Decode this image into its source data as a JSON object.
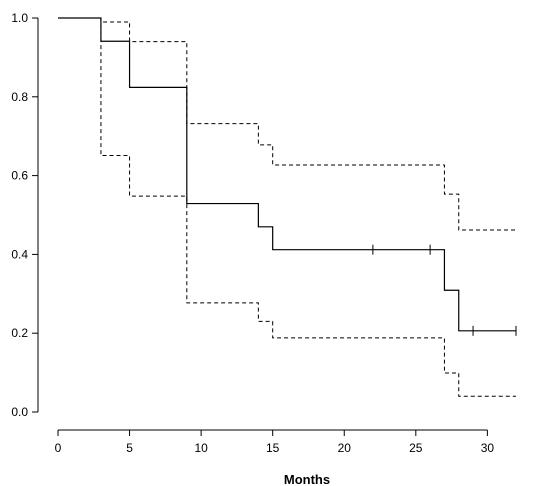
{
  "chart_data": {
    "type": "line",
    "title": "",
    "xlabel": "Months",
    "ylabel": "",
    "xlim": [
      0,
      32
    ],
    "ylim": [
      0,
      1
    ],
    "x_ticks": [
      0,
      5,
      10,
      15,
      20,
      25,
      30
    ],
    "y_ticks": [
      0.0,
      0.2,
      0.4,
      0.6,
      0.8,
      1.0
    ],
    "x_tick_labels": [
      "0",
      "5",
      "10",
      "15",
      "20",
      "25",
      "30"
    ],
    "y_tick_labels": [
      "0.0",
      "0.2",
      "0.4",
      "0.6",
      "0.8",
      "1.0"
    ],
    "grid": false,
    "series": [
      {
        "style": "solid",
        "x": [
          0,
          3,
          5,
          9,
          14,
          15,
          27,
          28,
          32
        ],
        "y": [
          1.0,
          0.941,
          0.824,
          0.529,
          0.47,
          0.412,
          0.309,
          0.206,
          0.206
        ],
        "censored": [
          [
            22,
            0.412
          ],
          [
            26,
            0.412
          ],
          [
            29,
            0.206
          ],
          [
            32,
            0.206
          ]
        ]
      },
      {
        "style": "dashed",
        "x": [
          0,
          3,
          5,
          9,
          14,
          15,
          27,
          28,
          32
        ],
        "y": [
          1.0,
          0.99,
          0.94,
          0.732,
          0.678,
          0.627,
          0.553,
          0.462,
          0.462
        ]
      },
      {
        "style": "dashed",
        "x": [
          0,
          3,
          5,
          9,
          14,
          15,
          27,
          28,
          32
        ],
        "y": [
          1.0,
          0.651,
          0.548,
          0.277,
          0.23,
          0.188,
          0.099,
          0.04,
          0.04
        ]
      }
    ]
  }
}
